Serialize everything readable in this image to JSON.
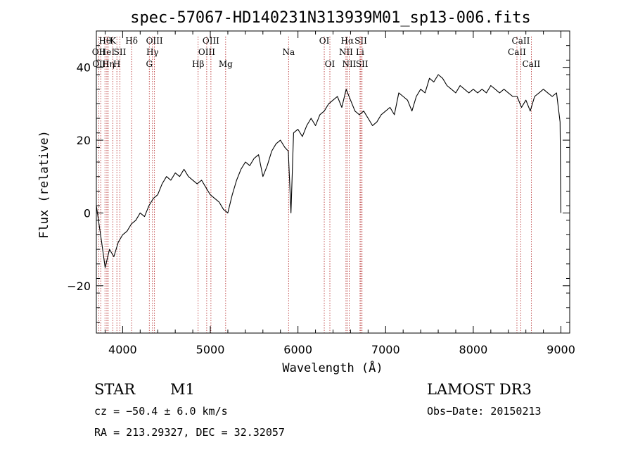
{
  "chart_data": {
    "type": "line",
    "title": "spec-57067-HD140231N313939M01_sp13-006.fits",
    "xlabel": "Wavelength (Å)",
    "ylabel": "Flux (relative)",
    "xlim": [
      3700,
      9100
    ],
    "ylim": [
      -33,
      50
    ],
    "x_ticks": [
      4000,
      5000,
      6000,
      7000,
      8000,
      9000
    ],
    "x_tick_labels": [
      "4000",
      "5000",
      "6000",
      "7000",
      "8000",
      "9000"
    ],
    "y_ticks": [
      -20,
      0,
      20,
      40
    ],
    "y_tick_labels": [
      "−20",
      "0",
      "20",
      "40"
    ],
    "series": [
      {
        "name": "flux",
        "x": [
          3700,
          3760,
          3800,
          3850,
          3900,
          3950,
          4000,
          4050,
          4100,
          4150,
          4200,
          4250,
          4300,
          4350,
          4400,
          4450,
          4500,
          4550,
          4600,
          4650,
          4700,
          4750,
          4800,
          4850,
          4900,
          4950,
          5000,
          5050,
          5100,
          5150,
          5200,
          5250,
          5300,
          5350,
          5400,
          5450,
          5500,
          5550,
          5600,
          5650,
          5700,
          5750,
          5800,
          5850,
          5890,
          5920,
          5950,
          6000,
          6050,
          6100,
          6150,
          6200,
          6250,
          6300,
          6350,
          6400,
          6450,
          6500,
          6550,
          6600,
          6650,
          6700,
          6750,
          6800,
          6850,
          6900,
          6950,
          7000,
          7050,
          7100,
          7150,
          7200,
          7250,
          7300,
          7350,
          7400,
          7450,
          7500,
          7550,
          7600,
          7650,
          7700,
          7750,
          7800,
          7850,
          7900,
          7950,
          8000,
          8050,
          8100,
          8150,
          8200,
          8250,
          8300,
          8350,
          8400,
          8450,
          8500,
          8550,
          8600,
          8650,
          8700,
          8750,
          8800,
          8850,
          8900,
          8950,
          8990,
          9000
        ],
        "y": [
          2,
          -8,
          -15,
          -10,
          -12,
          -8,
          -6,
          -5,
          -3,
          -2,
          0,
          -1,
          2,
          4,
          5,
          8,
          10,
          9,
          11,
          10,
          12,
          10,
          9,
          8,
          9,
          7,
          5,
          4,
          3,
          1,
          0,
          5,
          9,
          12,
          14,
          13,
          15,
          16,
          10,
          13,
          17,
          19,
          20,
          18,
          17,
          0,
          22,
          23,
          21,
          24,
          26,
          24,
          27,
          28,
          30,
          31,
          32,
          29,
          34,
          31,
          28,
          27,
          28,
          26,
          24,
          25,
          27,
          28,
          29,
          27,
          33,
          32,
          31,
          28,
          32,
          34,
          33,
          37,
          36,
          38,
          37,
          35,
          34,
          33,
          35,
          34,
          33,
          34,
          33,
          34,
          33,
          35,
          34,
          33,
          34,
          33,
          32,
          32,
          29,
          31,
          28,
          32,
          33,
          34,
          33,
          32,
          33,
          25,
          0
        ]
      }
    ],
    "line_markers": [
      {
        "wavelength": 3727,
        "label": "OII",
        "row": 2
      },
      {
        "wavelength": 3750,
        "label": "OIII",
        "row": 3
      },
      {
        "wavelength": 3798,
        "label": "Hθ",
        "row": 1
      },
      {
        "wavelength": 3820,
        "label": "HeI",
        "row": 2
      },
      {
        "wavelength": 3835,
        "label": "Hη",
        "row": 3
      },
      {
        "wavelength": 3889,
        "label": "K",
        "row": 1
      },
      {
        "wavelength": 3934,
        "label": "H",
        "row": 3
      },
      {
        "wavelength": 3969,
        "label": "SII",
        "row": 2
      },
      {
        "wavelength": 4102,
        "label": "Hδ",
        "row": 1
      },
      {
        "wavelength": 4304,
        "label": "G",
        "row": 3
      },
      {
        "wavelength": 4340,
        "label": "Hγ",
        "row": 2
      },
      {
        "wavelength": 4363,
        "label": "OIII",
        "row": 1
      },
      {
        "wavelength": 4861,
        "label": "Hβ",
        "row": 3
      },
      {
        "wavelength": 4959,
        "label": "OIII",
        "row": 2
      },
      {
        "wavelength": 5007,
        "label": "OIII",
        "row": 1
      },
      {
        "wavelength": 5175,
        "label": "Mg",
        "row": 3
      },
      {
        "wavelength": 5893,
        "label": "Na",
        "row": 2
      },
      {
        "wavelength": 6300,
        "label": "OI",
        "row": 1
      },
      {
        "wavelength": 6364,
        "label": "OI",
        "row": 3
      },
      {
        "wavelength": 6548,
        "label": "NII",
        "row": 2
      },
      {
        "wavelength": 6563,
        "label": "Hα",
        "row": 1
      },
      {
        "wavelength": 6584,
        "label": "NII",
        "row": 3
      },
      {
        "wavelength": 6708,
        "label": "Li",
        "row": 2
      },
      {
        "wavelength": 6717,
        "label": "SII",
        "row": 1
      },
      {
        "wavelength": 6731,
        "label": "SII",
        "row": 3
      },
      {
        "wavelength": 8498,
        "label": "CaII",
        "row": 2
      },
      {
        "wavelength": 8542,
        "label": "CaII",
        "row": 1
      },
      {
        "wavelength": 8662,
        "label": "CaII",
        "row": 3
      }
    ]
  },
  "info": {
    "object_class": "STAR",
    "subclass": "M1",
    "survey": "LAMOST DR3",
    "redshift": "cz = −50.4 ± 6.0 km/s",
    "obs_date": "Obs−Date: 20150213",
    "coordinates": "RA = 213.29327, DEC =  32.32057"
  },
  "colors": {
    "marker": "#b22222",
    "spectrum": "#000000",
    "axis": "#000000"
  }
}
